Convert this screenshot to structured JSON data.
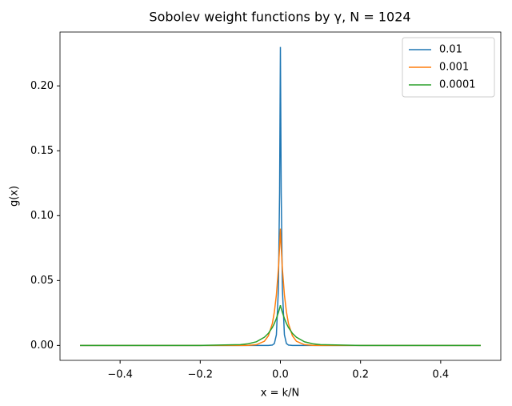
{
  "chart_data": {
    "type": "line",
    "title": "Sobolev weight functions by γ, N = 1024",
    "x_label": "x = k/N",
    "y_label": "g(x)",
    "x": [
      -0.5,
      -0.2,
      -0.1,
      -0.08,
      -0.06,
      -0.04,
      -0.03,
      -0.02,
      -0.015,
      -0.01,
      -0.005,
      -0.002,
      0,
      0.002,
      0.005,
      0.01,
      0.015,
      0.02,
      0.03,
      0.04,
      0.06,
      0.08,
      0.1,
      0.2,
      0.5
    ],
    "series": [
      {
        "name": "0.01",
        "color": "#1f77b4",
        "values": [
          0,
          0,
          0,
          0,
          0,
          0,
          0,
          0.0003,
          0.0015,
          0.0082,
          0.0434,
          0.118,
          0.23,
          0.118,
          0.0434,
          0.0082,
          0.0015,
          0.0003,
          0,
          0,
          0,
          0,
          0,
          0,
          0
        ]
      },
      {
        "name": "0.001",
        "color": "#ff7f0e",
        "values": [
          0,
          0,
          0,
          0.0001,
          0.0006,
          0.0032,
          0.0074,
          0.017,
          0.026,
          0.039,
          0.059,
          0.076,
          0.09,
          0.076,
          0.059,
          0.039,
          0.026,
          0.017,
          0.0074,
          0.0032,
          0.0006,
          0.0001,
          0,
          0,
          0
        ]
      },
      {
        "name": "0.0001",
        "color": "#2ca02c",
        "values": [
          0,
          0,
          0.0006,
          0.0013,
          0.0028,
          0.0063,
          0.0093,
          0.0139,
          0.017,
          0.0208,
          0.0254,
          0.0286,
          0.031,
          0.0286,
          0.0254,
          0.0208,
          0.017,
          0.0139,
          0.0093,
          0.0063,
          0.0028,
          0.0013,
          0.0006,
          0,
          0
        ]
      }
    ],
    "xlim": [
      -0.55,
      0.55
    ],
    "xticks": [
      {
        "value": -0.4,
        "label": "−0.4"
      },
      {
        "value": -0.2,
        "label": "−0.2"
      },
      {
        "value": 0,
        "label": "0.0"
      },
      {
        "value": 0.2,
        "label": "0.2"
      },
      {
        "value": 0.4,
        "label": "0.4"
      }
    ],
    "ylim": [
      -0.0115,
      0.2415
    ],
    "yticks": [
      {
        "value": 0,
        "label": "0.00"
      },
      {
        "value": 0.05,
        "label": "0.05"
      },
      {
        "value": 0.1,
        "label": "0.10"
      },
      {
        "value": 0.15,
        "label": "0.15"
      },
      {
        "value": 0.2,
        "label": "0.20"
      }
    ],
    "grid": false,
    "legend": "upper right"
  }
}
